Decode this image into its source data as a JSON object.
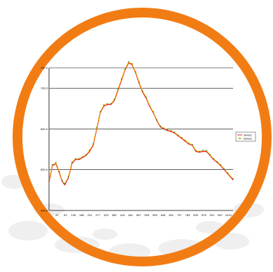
{
  "colors": {
    "ring": "#F27C14",
    "series1": "#E8231E",
    "series2": "#F2E600",
    "series2_marker": "#2E7D2E",
    "gridline": "#000000",
    "background_blob": "#EFEFEF"
  },
  "chart_data": {
    "type": "line",
    "title": "",
    "xlabel": "",
    "ylabel": "",
    "ylim": [
      400,
      750
    ],
    "yticks": [
      "400.0",
      "500.0",
      "600.0",
      "700.0",
      "750.0"
    ],
    "ytick_values": [
      400,
      500,
      600,
      700,
      750
    ],
    "xtick_labels": [
      "47",
      "93",
      "139",
      "185",
      "231",
      "277",
      "323",
      "369",
      "415",
      "461",
      "507",
      "553",
      "599",
      "645",
      "691",
      "737",
      "783",
      "829",
      "875",
      "921",
      "967",
      "1013"
    ],
    "xlim": [
      1,
      1040
    ],
    "grid": true,
    "legend_position": "right",
    "series": [
      {
        "name": "Series1",
        "x": [
          1,
          20,
          40,
          60,
          75,
          90,
          110,
          130,
          150,
          170,
          190,
          210,
          230,
          250,
          270,
          290,
          310,
          330,
          350,
          370,
          390,
          410,
          430,
          450,
          470,
          490,
          510,
          530,
          550,
          570,
          590,
          610,
          630,
          650,
          670,
          690,
          710,
          730,
          750,
          770,
          790,
          810,
          830,
          850,
          870,
          890,
          910,
          930,
          950,
          970,
          990,
          1010,
          1040
        ],
        "values": [
          470,
          510,
          515,
          492,
          472,
          463,
          480,
          515,
          525,
          525,
          530,
          535,
          545,
          560,
          600,
          640,
          656,
          660,
          660,
          670,
          695,
          720,
          745,
          762,
          758,
          738,
          712,
          690,
          675,
          655,
          640,
          620,
          605,
          600,
          596,
          594,
          590,
          583,
          577,
          570,
          563,
          560,
          545,
          543,
          545,
          545,
          535,
          525,
          518,
          510,
          500,
          490,
          475
        ]
      },
      {
        "name": "Series2",
        "x": [
          1,
          20,
          40,
          60,
          75,
          90,
          110,
          130,
          150,
          170,
          190,
          210,
          230,
          250,
          270,
          290,
          310,
          330,
          350,
          370,
          390,
          410,
          430,
          450,
          470,
          490,
          510,
          530,
          550,
          570,
          590,
          610,
          630,
          650,
          670,
          690,
          710,
          730,
          750,
          770,
          790,
          810,
          830,
          850,
          870,
          890,
          910,
          930,
          950,
          970,
          990,
          1010,
          1040
        ],
        "values": [
          475,
          512,
          518,
          495,
          474,
          466,
          483,
          518,
          527,
          527,
          532,
          537,
          548,
          563,
          603,
          642,
          659,
          662,
          662,
          673,
          698,
          723,
          747,
          765,
          760,
          740,
          715,
          693,
          678,
          657,
          642,
          622,
          607,
          602,
          598,
          596,
          592,
          585,
          579,
          572,
          565,
          562,
          547,
          545,
          548,
          547,
          537,
          527,
          520,
          512,
          502,
          492,
          478
        ]
      }
    ]
  }
}
